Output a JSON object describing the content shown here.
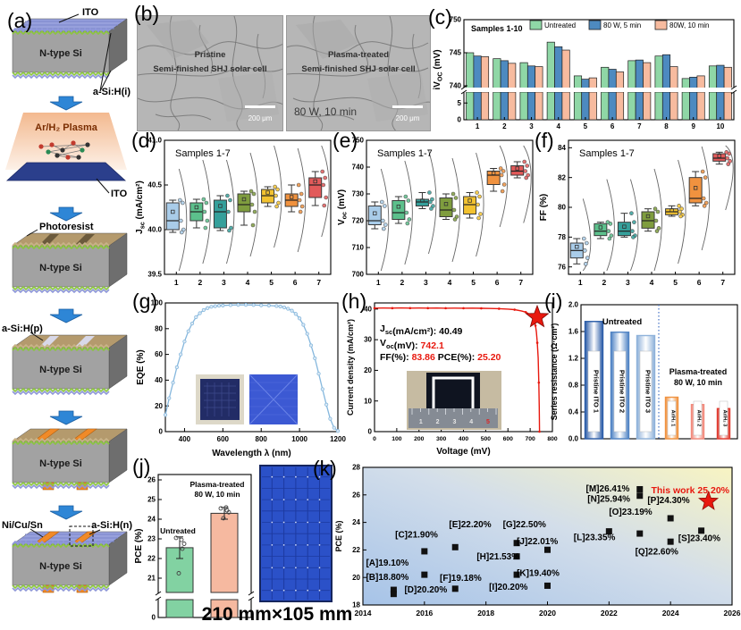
{
  "figure": {
    "panels": {
      "a": {
        "label": "(a)",
        "steps": [
          {
            "kind": "slab",
            "top": "ito",
            "body": "N-type Si",
            "labels": {
              "top": "ITO",
              "bottom": "a-Si:H(i)"
            }
          },
          {
            "kind": "plasma",
            "title": "Ar/H₂ Plasma",
            "sub": "ITO"
          },
          {
            "kind": "slab",
            "top": "resist",
            "body": "N-type Si",
            "labels": {
              "top": "Photoresist"
            }
          },
          {
            "kind": "slab",
            "top": "groove",
            "body": "N-type Si",
            "labels": {
              "topleft": "a-Si:H(p)"
            }
          },
          {
            "kind": "slab",
            "top": "electrode",
            "body": "N-type Si",
            "labels": {}
          },
          {
            "kind": "slab",
            "top": "final",
            "body": "N-type Si",
            "labels": {
              "topleft": "Ni/Cu/Sn",
              "topright": "a-Si:H(n)"
            }
          }
        ]
      },
      "b": {
        "label": "(b)",
        "images": [
          {
            "line1": "Pristine",
            "line2": "Semi-finished SHJ solar cell",
            "scale": "200 μm"
          },
          {
            "line1": "Plasma-treated",
            "line2": "Semi-finished SHJ solar cell",
            "extra": "80 W, 10 min",
            "scale": "200 μm"
          }
        ]
      },
      "c": {
        "label": "(c)"
      },
      "d": {
        "label": "(d)"
      },
      "e": {
        "label": "(e)"
      },
      "f": {
        "label": "(f)"
      },
      "g": {
        "label": "(g)"
      },
      "h": {
        "label": "(h)"
      },
      "i": {
        "label": "(i)"
      },
      "j": {
        "label": "(j)",
        "caption": "210 mm×105 mm"
      },
      "k": {
        "label": "(k)"
      }
    }
  },
  "chart_data": [
    {
      "panel": "c",
      "type": "bar",
      "title": "Samples 1-10",
      "ylabel_main": "iV",
      "ylabel_sub": "OC",
      "ylabel_rest": " (mV)",
      "categories": [
        1,
        2,
        3,
        4,
        5,
        6,
        7,
        8,
        9,
        10
      ],
      "series": [
        {
          "name": "Untreated",
          "color": "#8fd7a6",
          "values": [
            745.0,
            744.1,
            743.5,
            746.6,
            741.5,
            742.8,
            743.8,
            744.5,
            741.1,
            743.0
          ]
        },
        {
          "name": "80 W, 5 min",
          "color": "#4d8ac0",
          "values": [
            744.5,
            743.8,
            743.0,
            745.9,
            741.0,
            742.5,
            743.9,
            744.7,
            741.3,
            743.1
          ]
        },
        {
          "name": "80W, 10 min",
          "color": "#f7bb9f",
          "values": [
            744.4,
            743.4,
            742.9,
            745.4,
            741.2,
            742.1,
            743.5,
            742.9,
            741.5,
            742.8
          ]
        }
      ],
      "broken_axis": {
        "upper": [
          740,
          750
        ],
        "upper_ticks": [
          740,
          745,
          750
        ],
        "lower": [
          0,
          8
        ],
        "lower_ticks": [
          0,
          5
        ]
      }
    },
    {
      "panel": "d",
      "type": "boxplot",
      "title": "Samples 1-7",
      "ylabel_main": "J",
      "ylabel_sub": "sc",
      "ylabel_rest": " (mA/cm²)",
      "ylim": [
        39.5,
        41.0
      ],
      "yticks": [
        39.5,
        40.0,
        40.5,
        41.0
      ],
      "ydec": 1,
      "categories": [
        1,
        2,
        3,
        4,
        5,
        6,
        7
      ],
      "colors": [
        "#a9cce9",
        "#5cc08c",
        "#35a09b",
        "#7f9d3e",
        "#f2c230",
        "#f0923f",
        "#e25a5a"
      ],
      "boxes": [
        {
          "low": 39.97,
          "q1": 40.0,
          "med": 40.1,
          "q3": 40.3,
          "high": 40.33
        },
        {
          "low": 40.02,
          "q1": 40.1,
          "med": 40.2,
          "q3": 40.3,
          "high": 40.34
        },
        {
          "low": 39.99,
          "q1": 40.02,
          "med": 40.2,
          "q3": 40.33,
          "high": 40.38
        },
        {
          "low": 40.05,
          "q1": 40.2,
          "med": 40.28,
          "q3": 40.4,
          "high": 40.43
        },
        {
          "low": 40.26,
          "q1": 40.3,
          "med": 40.38,
          "q3": 40.45,
          "high": 40.48
        },
        {
          "low": 40.2,
          "q1": 40.26,
          "med": 40.33,
          "q3": 40.4,
          "high": 40.5
        },
        {
          "low": 40.27,
          "q1": 40.36,
          "med": 40.5,
          "q3": 40.58,
          "high": 40.65
        }
      ]
    },
    {
      "panel": "e",
      "type": "boxplot",
      "title": "Samples 1-7",
      "ylabel_main": "V",
      "ylabel_sub": "oc",
      "ylabel_rest": " (mV)",
      "ylim": [
        700,
        750
      ],
      "yticks": [
        700,
        710,
        720,
        730,
        740,
        750
      ],
      "ydec": 0,
      "categories": [
        1,
        2,
        3,
        4,
        5,
        6,
        7
      ],
      "colors": [
        "#a9cce9",
        "#5cc08c",
        "#35a09b",
        "#7f9d3e",
        "#f2c230",
        "#f0923f",
        "#e25a5a"
      ],
      "boxes": [
        {
          "low": 717,
          "q1": 718.5,
          "med": 720,
          "q3": 725.5,
          "high": 727
        },
        {
          "low": 719,
          "q1": 720.5,
          "med": 723,
          "q3": 727.5,
          "high": 729
        },
        {
          "low": 724.5,
          "q1": 725.5,
          "med": 727,
          "q3": 728,
          "high": 730.5
        },
        {
          "low": 720.5,
          "q1": 721.5,
          "med": 724,
          "q3": 728.5,
          "high": 730
        },
        {
          "low": 721,
          "q1": 722.5,
          "med": 726,
          "q3": 729,
          "high": 730.5
        },
        {
          "low": 731,
          "q1": 733.5,
          "med": 737,
          "q3": 738.5,
          "high": 739.5
        },
        {
          "low": 736,
          "q1": 737,
          "med": 738.5,
          "q3": 740.5,
          "high": 742
        }
      ]
    },
    {
      "panel": "f",
      "type": "boxplot",
      "title": "Samples 1-7",
      "ylabel_main": "FF",
      "ylabel_sub": "",
      "ylabel_rest": " (%)",
      "ylim": [
        75.5,
        84.5
      ],
      "yticks": [
        76,
        78,
        80,
        82,
        84
      ],
      "ydec": 0,
      "categories": [
        1,
        2,
        3,
        4,
        5,
        6,
        7
      ],
      "colors": [
        "#a9cce9",
        "#5cc08c",
        "#35a09b",
        "#7f9d3e",
        "#f2c230",
        "#f0923f",
        "#e25a5a"
      ],
      "boxes": [
        {
          "low": 76.2,
          "q1": 76.6,
          "med": 77.1,
          "q3": 77.6,
          "high": 77.9
        },
        {
          "low": 77.9,
          "q1": 78.1,
          "med": 78.4,
          "q3": 78.9,
          "high": 79.0
        },
        {
          "low": 78.0,
          "q1": 78.1,
          "med": 78.4,
          "q3": 79.0,
          "high": 79.6
        },
        {
          "low": 78.4,
          "q1": 78.6,
          "med": 79.1,
          "q3": 79.7,
          "high": 79.9
        },
        {
          "low": 79.4,
          "q1": 79.5,
          "med": 79.7,
          "q3": 79.9,
          "high": 80.1
        },
        {
          "low": 80.1,
          "q1": 80.3,
          "med": 80.6,
          "q3": 82.0,
          "high": 82.4
        },
        {
          "low": 82.9,
          "q1": 83.1,
          "med": 83.3,
          "q3": 83.6,
          "high": 83.7
        }
      ]
    },
    {
      "panel": "g",
      "type": "line",
      "xlabel": "Wavelength λ (nm)",
      "ylabel_main": "EQE",
      "ylabel_sub": "",
      "ylabel_rest": " (%)",
      "xlim": [
        300,
        1200
      ],
      "xticks": [
        400,
        600,
        800,
        1000,
        1200
      ],
      "ylim": [
        0,
        100
      ],
      "yticks": [
        0,
        20,
        40,
        60,
        80,
        100
      ],
      "color": "#85b7dd",
      "x": [
        300,
        320,
        340,
        360,
        380,
        400,
        420,
        440,
        460,
        480,
        500,
        520,
        540,
        560,
        580,
        600,
        640,
        680,
        720,
        760,
        800,
        840,
        880,
        900,
        920,
        940,
        960,
        980,
        1000,
        1020,
        1040,
        1060,
        1080,
        1100,
        1120,
        1140,
        1160,
        1180,
        1200
      ],
      "y": [
        13,
        26,
        38,
        50,
        60,
        70,
        78,
        84,
        89,
        92,
        94.5,
        96,
        97,
        97.5,
        97.8,
        98,
        98.3,
        98.5,
        98.5,
        98.4,
        98.2,
        98,
        97.6,
        97.2,
        96.5,
        95.5,
        94,
        91.5,
        88,
        83,
        76,
        67,
        57,
        45,
        33,
        21,
        10,
        3,
        0.5
      ]
    },
    {
      "panel": "h",
      "type": "line",
      "xlabel": "Voltage (mV)",
      "ylabel_main": "Current density",
      "ylabel_sub": "",
      "ylabel_rest": " (mA/cm²)",
      "xlim": [
        0,
        800
      ],
      "xticks": [
        0,
        100,
        200,
        300,
        400,
        500,
        600,
        700,
        800
      ],
      "ylim": [
        0,
        42
      ],
      "yticks": [
        0,
        10,
        20,
        30,
        40
      ],
      "color": "#e8190f",
      "x": [
        0,
        40,
        80,
        120,
        160,
        200,
        240,
        280,
        320,
        360,
        400,
        440,
        480,
        520,
        560,
        600,
        630,
        660,
        680,
        700,
        710,
        718,
        724,
        728,
        732,
        736,
        739,
        741,
        742
      ],
      "y": [
        40.3,
        40.35,
        40.3,
        40.36,
        40.31,
        40.34,
        40.3,
        40.33,
        40.29,
        40.32,
        40.27,
        40.3,
        40.24,
        40.2,
        40.12,
        40.0,
        39.8,
        39.4,
        39.0,
        38.2,
        37.3,
        36.2,
        34.6,
        32.5,
        29.0,
        24.0,
        16.0,
        8.0,
        0
      ],
      "annotations": [
        [
          {
            "t": "J"
          },
          {
            "t": "sc",
            "sub": 1
          },
          {
            "t": "(mA/cm²): 40.49"
          }
        ],
        [
          {
            "t": "V"
          },
          {
            "t": "oc",
            "sub": 1
          },
          {
            "t": "(mV): "
          },
          {
            "t": "742.1",
            "c": "#e8190f"
          }
        ],
        [
          {
            "t": "FF(%): "
          },
          {
            "t": "83.86",
            "c": "#e8190f"
          },
          {
            "t": " PCE(%): "
          },
          {
            "t": "25.20",
            "c": "#e8190f"
          }
        ]
      ]
    },
    {
      "panel": "i",
      "type": "bar",
      "ylabel_main": "Series resistance",
      "ylabel_sub": "",
      "ylabel_rest": " (Ω·cm²)",
      "ylim": [
        0,
        2.0
      ],
      "yticks": [
        0.0,
        0.4,
        0.8,
        1.2,
        1.6,
        2.0
      ],
      "categories": [
        "Pristine ITO 1",
        "Pristine ITO 2",
        "Pristine ITO 3",
        "Ar/H₂ 1",
        "Ar/H₂ 2",
        "Ar/H₂ 3"
      ],
      "values": [
        1.75,
        1.59,
        1.54,
        0.62,
        0.51,
        0.45
      ],
      "colors": [
        "#2b5ca8",
        "#4f83c4",
        "#8fb2da",
        "#f0923f",
        "#f2897b",
        "#e03a2f"
      ],
      "group_labels": [
        "Untreated",
        "Plasma-treated",
        "80 W, 10 min"
      ]
    },
    {
      "panel": "j",
      "type": "bar",
      "ylabel_main": "PCE",
      "ylabel_sub": "",
      "ylabel_rest": " (%)",
      "categories": [
        "Untreated",
        "Plasma-treated 80 W, 10 min"
      ],
      "bar_labels": [
        "Untreated",
        "Plasma-treated",
        "80 W, 10 min"
      ],
      "values": [
        22.55,
        24.3
      ],
      "errors": [
        0.55,
        0.3
      ],
      "points": [
        [
          23.05,
          22.95,
          22.75,
          21.25,
          22.5
        ],
        [
          24.55,
          24.6,
          24.35,
          24.05,
          24.45
        ]
      ],
      "colors": [
        "#82d2a2",
        "#f6b9a0"
      ],
      "broken_axis": {
        "upper": [
          21,
          26
        ],
        "upper_ticks": [
          21,
          22,
          23,
          24,
          25,
          26
        ],
        "lower_ticks": [
          0
        ]
      }
    },
    {
      "panel": "k",
      "type": "scatter",
      "ylabel_main": "PCE",
      "ylabel_sub": "",
      "ylabel_rest": " (%)",
      "xlim": [
        2014,
        2026
      ],
      "xticks": [
        2014,
        2016,
        2018,
        2020,
        2022,
        2024,
        2026
      ],
      "ylim": [
        18,
        28
      ],
      "yticks": [
        18,
        20,
        22,
        24,
        26,
        28
      ],
      "marker_color": "#111111",
      "points": [
        {
          "id": "A",
          "year": 2015,
          "pce": 19.1,
          "label": "[A]19.10%",
          "lx": 2014.1,
          "ly": 21.05
        },
        {
          "id": "B",
          "year": 2015,
          "pce": 18.8,
          "label": "[B]18.80%",
          "lx": 2014.1,
          "ly": 20.0
        },
        {
          "id": "C",
          "year": 2016,
          "pce": 21.9,
          "label": "[C]21.90%",
          "lx": 2015.05,
          "ly": 23.1
        },
        {
          "id": "D",
          "year": 2016,
          "pce": 20.2,
          "label": "[D]20.20%",
          "lx": 2015.35,
          "ly": 19.1
        },
        {
          "id": "E",
          "year": 2017,
          "pce": 22.2,
          "label": "[E]22.20%",
          "lx": 2016.8,
          "ly": 23.85
        },
        {
          "id": "F",
          "year": 2017,
          "pce": 19.18,
          "label": "[F]19.18%",
          "lx": 2016.5,
          "ly": 19.95
        },
        {
          "id": "G",
          "year": 2019,
          "pce": 22.5,
          "label": "[G]22.50%",
          "lx": 2018.55,
          "ly": 23.85
        },
        {
          "id": "H",
          "year": 2019,
          "pce": 21.53,
          "label": "[H]21.53%",
          "lx": 2017.7,
          "ly": 21.5
        },
        {
          "id": "I",
          "year": 2019,
          "pce": 20.2,
          "label": "[I]20.20%",
          "lx": 2018.1,
          "ly": 19.3
        },
        {
          "id": "J",
          "year": 2020,
          "pce": 22.01,
          "label": "[J]22.01%",
          "lx": 2019.0,
          "ly": 22.6
        },
        {
          "id": "K",
          "year": 2020,
          "pce": 19.4,
          "label": "[K]19.40%",
          "lx": 2019.0,
          "ly": 20.3
        },
        {
          "id": "L",
          "year": 2022,
          "pce": 23.35,
          "label": "[L]23.35%",
          "lx": 2020.85,
          "ly": 22.9
        },
        {
          "id": "M",
          "year": 2023,
          "pce": 26.41,
          "label": "[M]26.41%",
          "lx": 2021.25,
          "ly": 26.45
        },
        {
          "id": "N",
          "year": 2023,
          "pce": 25.94,
          "label": "[N]25.94%",
          "lx": 2021.3,
          "ly": 25.7
        },
        {
          "id": "O",
          "year": 2023,
          "pce": 23.19,
          "label": "[O]23.19%",
          "lx": 2022.0,
          "ly": 24.75
        },
        {
          "id": "P",
          "year": 2024,
          "pce": 24.3,
          "label": "[P]24.30%",
          "lx": 2023.25,
          "ly": 25.6
        },
        {
          "id": "Q",
          "year": 2024,
          "pce": 22.6,
          "label": "[Q]22.60%",
          "lx": 2022.85,
          "ly": 21.85
        },
        {
          "id": "S",
          "year": 2025,
          "pce": 23.4,
          "label": "[S]23.40%",
          "lx": 2024.25,
          "ly": 22.85
        }
      ],
      "highlight": {
        "label": "This work 25.20%",
        "year": 2025,
        "pce": 25.2,
        "color": "#e8190f"
      }
    }
  ]
}
